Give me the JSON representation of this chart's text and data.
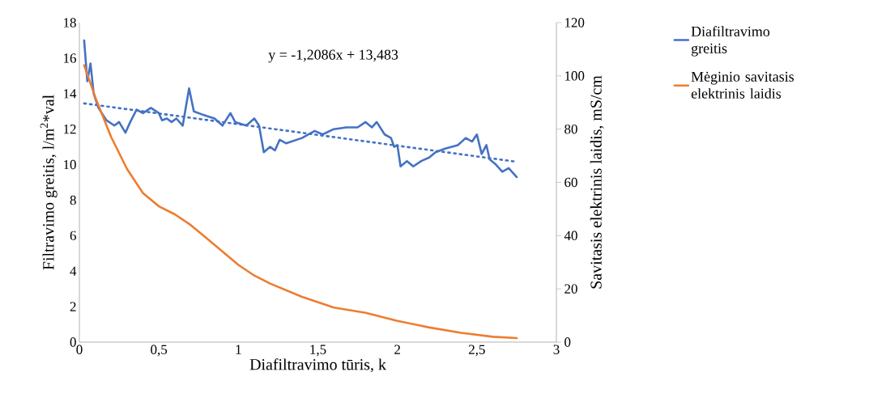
{
  "chart_data": {
    "type": "line",
    "xlabel": "Diafiltravimo tūris, k",
    "ylabel": "Filtravimo greitis, l/m$^{2}$*val",
    "y2label": "Savitasis elektrinis laidis, mS/cm",
    "annotations": [
      "y = -1,2086x + 13,483"
    ],
    "xlim": [
      0,
      3
    ],
    "xticks": [
      0,
      {
        "value": 0.5,
        "label": "0,5"
      },
      1,
      {
        "value": 1.5,
        "label": "1,5"
      },
      2,
      {
        "value": 2.5,
        "label": "2,5"
      },
      3
    ],
    "ylim": [
      0,
      18
    ],
    "yticks": [
      0,
      2,
      4,
      6,
      8,
      10,
      12,
      14,
      16,
      18
    ],
    "y2lim": [
      0,
      120
    ],
    "y2ticks": [
      0,
      20,
      40,
      60,
      80,
      100,
      120
    ],
    "legend": "right",
    "grid": false,
    "series": [
      {
        "name": "Diafiltravimo greitis",
        "color": "#4472c4",
        "x": [
          0.03,
          0.05,
          0.07,
          0.09,
          0.12,
          0.17,
          0.22,
          0.25,
          0.29,
          0.32,
          0.36,
          0.4,
          0.45,
          0.5,
          0.52,
          0.55,
          0.58,
          0.61,
          0.65,
          0.69,
          0.72,
          0.78,
          0.85,
          0.9,
          0.95,
          0.98,
          1.05,
          1.1,
          1.13,
          1.16,
          1.2,
          1.23,
          1.26,
          1.3,
          1.4,
          1.48,
          1.53,
          1.6,
          1.68,
          1.75,
          1.8,
          1.84,
          1.87,
          1.92,
          1.96,
          1.98,
          2.0,
          2.02,
          2.06,
          2.1,
          2.15,
          2.2,
          2.24,
          2.3,
          2.38,
          2.43,
          2.47,
          2.5,
          2.53,
          2.56,
          2.58,
          2.62,
          2.66,
          2.7,
          2.75
        ],
        "values": [
          17.0,
          14.7,
          15.7,
          14.0,
          13.2,
          12.5,
          12.2,
          12.4,
          11.8,
          12.4,
          13.1,
          12.9,
          13.2,
          12.9,
          12.5,
          12.6,
          12.4,
          12.6,
          12.2,
          14.3,
          13.0,
          12.8,
          12.6,
          12.2,
          12.9,
          12.4,
          12.2,
          12.6,
          12.2,
          10.7,
          11.0,
          10.8,
          11.4,
          11.2,
          11.5,
          11.9,
          11.7,
          12.0,
          12.1,
          12.1,
          12.4,
          12.1,
          12.4,
          11.7,
          11.5,
          11.0,
          11.1,
          9.9,
          10.2,
          9.9,
          10.2,
          10.4,
          10.7,
          10.9,
          11.1,
          11.5,
          11.3,
          11.7,
          10.6,
          11.1,
          10.3,
          10.0,
          9.6,
          9.8,
          9.3
        ]
      },
      {
        "color": "#4472c4",
        "type": "line",
        "line_style": "dotted",
        "x": [
          0.03,
          2.75
        ],
        "values": [
          13.45,
          10.16
        ]
      },
      {
        "name": "Mėginio savitasis elektrinis laidis",
        "color": "#ed7d31",
        "axis": "y2",
        "x": [
          0.03,
          0.1,
          0.2,
          0.3,
          0.4,
          0.5,
          0.6,
          0.7,
          0.8,
          0.9,
          1.0,
          1.1,
          1.2,
          1.4,
          1.6,
          1.8,
          2.0,
          2.2,
          2.4,
          2.6,
          2.75
        ],
        "values": [
          104,
          92,
          77,
          65,
          56,
          51,
          48,
          44,
          39,
          34,
          29,
          25,
          22,
          17,
          13,
          11,
          8,
          5.5,
          3.5,
          2,
          1.5
        ]
      }
    ]
  }
}
